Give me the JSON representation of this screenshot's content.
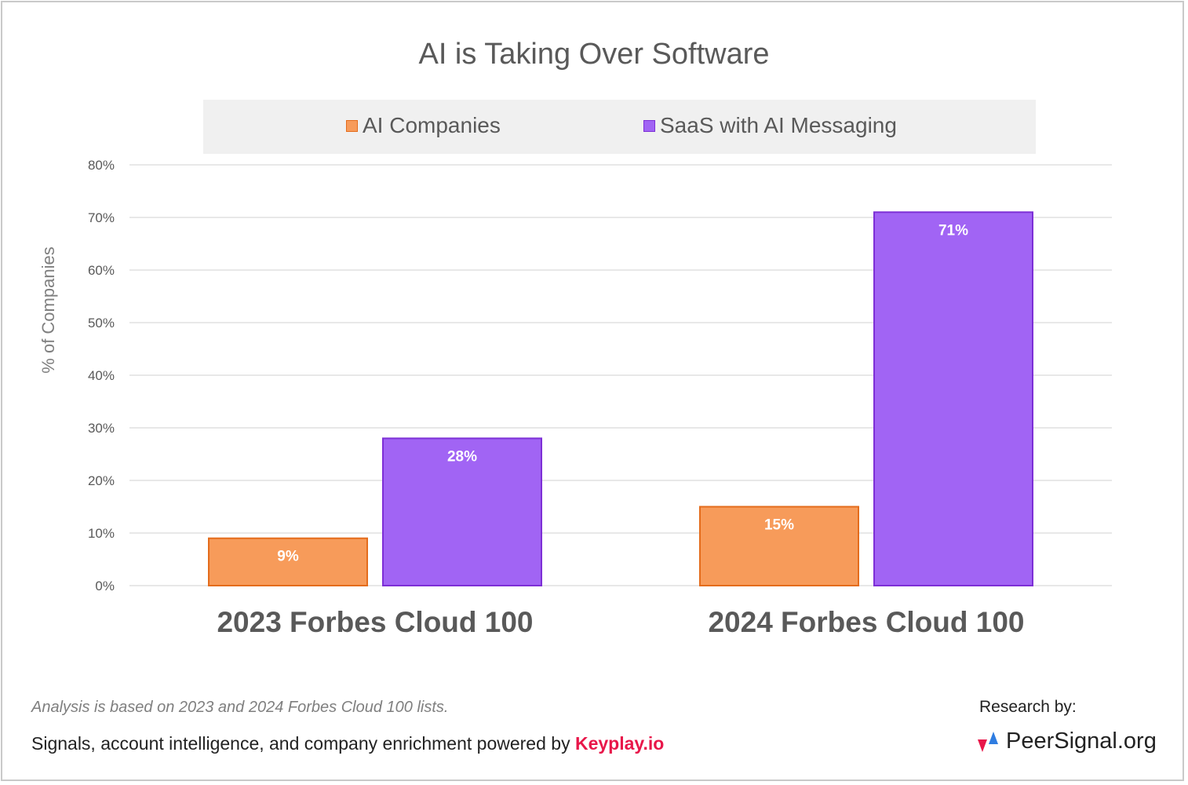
{
  "chart_data": {
    "type": "bar",
    "title": "AI is Taking Over Software",
    "categories": [
      "2023 Forbes Cloud 100",
      "2024 Forbes Cloud 100"
    ],
    "series": [
      {
        "name": "AI Companies",
        "values": [
          9,
          15
        ],
        "labels": [
          "9%",
          "15%"
        ],
        "color": "#f79b5a",
        "stroke": "#e46c1c"
      },
      {
        "name": "SaaS with AI Messaging",
        "values": [
          28,
          71
        ],
        "labels": [
          "28%",
          "71%"
        ],
        "color": "#a164f4",
        "stroke": "#7d2fd6"
      }
    ],
    "ylabel": "% of Companies",
    "xlabel": "",
    "ylim": [
      0,
      80
    ],
    "yticks": [
      "0%",
      "10%",
      "20%",
      "30%",
      "40%",
      "50%",
      "60%",
      "70%",
      "80%"
    ],
    "grid": true,
    "legend": "top"
  },
  "footer": {
    "note": "Analysis is based on 2023 and 2024 Forbes Cloud 100 lists.",
    "powered_text": "Signals, account intelligence, and company enrichment powered by ",
    "powered_brand": "Keyplay.io",
    "research_label": "Research by:",
    "research_brand": "PeerSignal.org"
  },
  "colors": {
    "brand_keyplay": "#e8174a",
    "peersignal_red": "#e8174a",
    "peersignal_blue": "#2f7de1"
  }
}
